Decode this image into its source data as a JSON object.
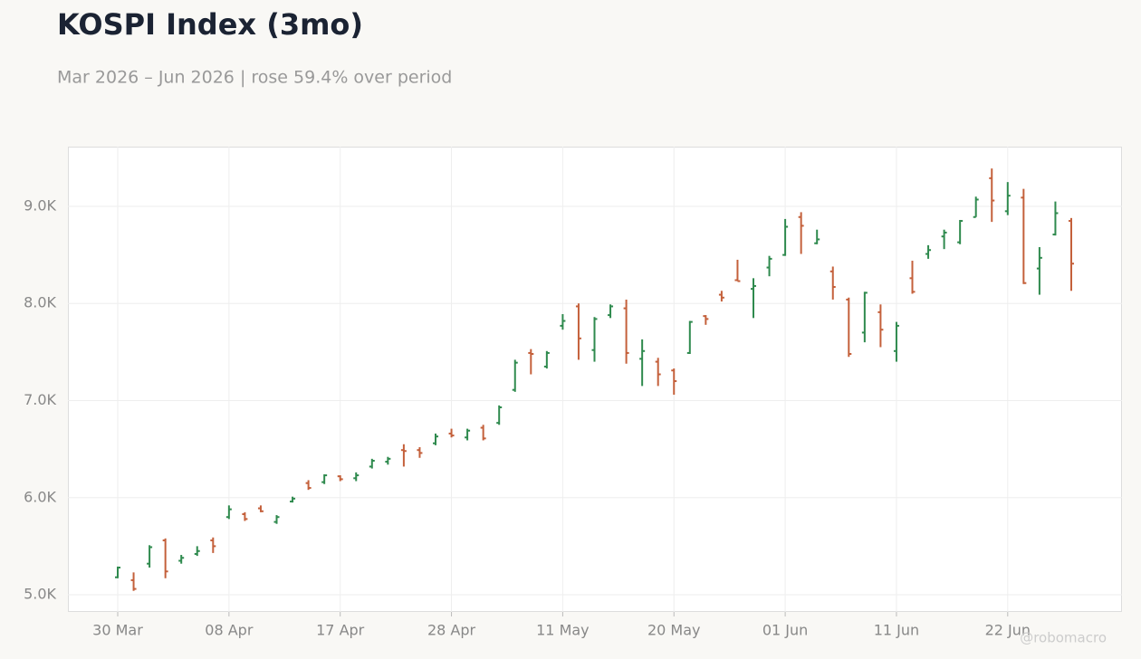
{
  "chart_data": {
    "type": "ohlc",
    "title": "KOSPI Index (3mo)",
    "subtitle": "Mar 2026 – Jun 2026 | rose 59.4% over period",
    "watermark": "@robomacro",
    "categories": [
      "30 Mar",
      null,
      null,
      null,
      null,
      null,
      null,
      "08 Apr",
      null,
      null,
      null,
      null,
      null,
      null,
      "17 Apr",
      null,
      null,
      null,
      null,
      null,
      null,
      "28 Apr",
      null,
      null,
      null,
      null,
      null,
      null,
      "11 May",
      null,
      null,
      null,
      null,
      null,
      null,
      "20 May",
      null,
      null,
      null,
      null,
      null,
      null,
      "01 Jun",
      null,
      null,
      null,
      null,
      null,
      null,
      "11 Jun",
      null,
      null,
      null,
      null,
      null,
      null,
      "22 Jun",
      null,
      null,
      null,
      null
    ],
    "open": [
      5180,
      5150,
      5320,
      5560,
      5350,
      5420,
      5560,
      5800,
      5830,
      5890,
      5750,
      5960,
      6150,
      6160,
      6220,
      6200,
      6320,
      6370,
      6490,
      6490,
      6560,
      6660,
      6620,
      6720,
      6770,
      7110,
      7490,
      7350,
      7770,
      7970,
      7520,
      7880,
      7950,
      7430,
      7400,
      7310,
      7490,
      7870,
      8090,
      8240,
      8150,
      8370,
      8500,
      8890,
      8620,
      8330,
      8040,
      7700,
      7910,
      7510,
      8260,
      8510,
      8690,
      8630,
      8890,
      9290,
      8950,
      9090,
      8360,
      8710,
      8850
    ],
    "high": [
      5290,
      5230,
      5510,
      5580,
      5410,
      5500,
      5590,
      5920,
      5850,
      5920,
      5820,
      6010,
      6180,
      6240,
      6230,
      6260,
      6400,
      6420,
      6550,
      6520,
      6660,
      6710,
      6710,
      6750,
      6950,
      7420,
      7530,
      7510,
      7890,
      8000,
      7860,
      7990,
      8040,
      7630,
      7440,
      7330,
      7820,
      7880,
      8130,
      8450,
      8260,
      8490,
      8870,
      8940,
      8760,
      8380,
      8060,
      8120,
      7990,
      7810,
      8440,
      8600,
      8760,
      8860,
      9100,
      9390,
      9250,
      9180,
      8580,
      9050,
      8880
    ],
    "low": [
      5170,
      5040,
      5280,
      5170,
      5320,
      5400,
      5430,
      5780,
      5760,
      5850,
      5730,
      5950,
      6080,
      6140,
      6170,
      6170,
      6300,
      6340,
      6320,
      6410,
      6540,
      6620,
      6590,
      6590,
      6750,
      7090,
      7270,
      7330,
      7730,
      7420,
      7400,
      7850,
      7380,
      7150,
      7150,
      7060,
      7480,
      7780,
      8020,
      8230,
      7850,
      8280,
      8490,
      8510,
      8610,
      8040,
      7450,
      7600,
      7550,
      7400,
      8100,
      8460,
      8560,
      8610,
      8890,
      8840,
      8910,
      8200,
      8090,
      8700,
      8130
    ],
    "close": [
      5280,
      5060,
      5490,
      5240,
      5380,
      5450,
      5500,
      5880,
      5780,
      5860,
      5800,
      5990,
      6100,
      6230,
      6190,
      6230,
      6380,
      6400,
      6480,
      6460,
      6630,
      6640,
      6690,
      6610,
      6930,
      7390,
      7480,
      7490,
      7820,
      7640,
      7840,
      7970,
      7490,
      7510,
      7270,
      7200,
      7810,
      7840,
      8060,
      8230,
      8180,
      8460,
      8790,
      8800,
      8660,
      8170,
      7480,
      8110,
      7730,
      7770,
      8120,
      8550,
      8730,
      8850,
      9070,
      9060,
      9110,
      8210,
      8470,
      8930,
      8410
    ],
    "up_color": "#2f8a4e",
    "down_color": "#c4603b",
    "ylim": [
      4823,
      9615
    ],
    "yticks": [
      {
        "value": 5000,
        "label": "5.0K"
      },
      {
        "value": 6000,
        "label": "6.0K"
      },
      {
        "value": 7000,
        "label": "7.0K"
      },
      {
        "value": 8000,
        "label": "8.0K"
      },
      {
        "value": 9000,
        "label": "9.0K"
      }
    ],
    "grid": true
  }
}
